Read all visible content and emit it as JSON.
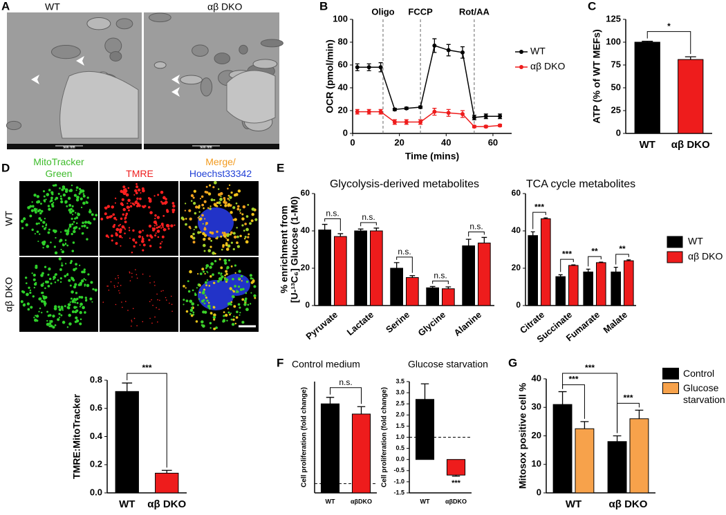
{
  "panel_labels": [
    "A",
    "B",
    "C",
    "D",
    "E",
    "F",
    "G"
  ],
  "micrographs": {
    "labels": [
      "WT",
      "αβ DKO"
    ],
    "scale_label": "500 nm"
  },
  "fluorescence": {
    "columns": {
      "mitotracker": "MitoTracker Green",
      "tmre": "TMRE",
      "merge": "Merge/",
      "hoechst": "Hoechst33342"
    },
    "rows": [
      "WT",
      "αβ DKO"
    ]
  },
  "chart_data": [
    {
      "type": "line",
      "xlabel": "Time (mins)",
      "ylabel": "OCR (pmol/min)",
      "x": [
        2,
        7,
        12,
        18,
        23,
        29,
        35,
        41,
        47,
        52,
        57,
        63
      ],
      "series": [
        {
          "name": "WT",
          "color": "#000000",
          "values": [
            58,
            58,
            58,
            21,
            22,
            23,
            77,
            73,
            71,
            14,
            15,
            15
          ],
          "errors": [
            3,
            3,
            4,
            1,
            1,
            1,
            6,
            5,
            5,
            2,
            2,
            2
          ]
        },
        {
          "name": "αβ DKO",
          "color": "#ee1c1c",
          "values": [
            19,
            19,
            19,
            10,
            10,
            10,
            19,
            18,
            17,
            6,
            6,
            7
          ],
          "errors": [
            2,
            2,
            2,
            2,
            2,
            2,
            3,
            3,
            3,
            1,
            1,
            1
          ]
        }
      ],
      "events": [
        {
          "x": 13,
          "label": "Oligo"
        },
        {
          "x": 29,
          "label": "FCCP"
        },
        {
          "x": 52,
          "label": "Rot/AA"
        }
      ],
      "xlim": [
        0,
        68
      ],
      "xticks": [
        0,
        20,
        40,
        60
      ],
      "ylim": [
        0,
        100
      ],
      "yticks": [
        0,
        20,
        40,
        60,
        80,
        100
      ]
    },
    {
      "type": "bar",
      "ylabel": "ATP (% of WT MEFs)",
      "categories": [
        "WT",
        "αβ DKO"
      ],
      "values": [
        100,
        81
      ],
      "errors": [
        1,
        3
      ],
      "colors": [
        "#000000",
        "#ee1c1c"
      ],
      "ylim": [
        0,
        125
      ],
      "yticks": [
        0,
        25,
        50,
        75,
        100,
        125
      ],
      "significance": "*"
    },
    {
      "type": "bar",
      "ylabel": "TMRE:MitoTracker",
      "categories": [
        "WT",
        "αβ DKO"
      ],
      "values": [
        0.72,
        0.14
      ],
      "errors": [
        0.06,
        0.02
      ],
      "colors": [
        "#000000",
        "#ee1c1c"
      ],
      "ylim": [
        0,
        0.8
      ],
      "yticks": [
        {
          "value": 0,
          "label": "0.0"
        },
        0.2,
        0.4,
        0.6,
        0.8
      ],
      "significance": "***"
    },
    {
      "type": "bar",
      "title": "Glycolysis-derived metabolites",
      "ylabel": [
        "% enrichment from",
        "[U-¹³C₆] Glucose (1-M0)"
      ],
      "categories": [
        "Pyruvate",
        "Lactate",
        "Serine",
        "Glycine",
        "Alanine"
      ],
      "series": [
        {
          "name": "WT",
          "color": "#000000",
          "values": [
            40.5,
            40,
            20,
            9.5,
            32
          ],
          "errors": [
            3,
            1,
            3,
            0.7,
            3.5
          ]
        },
        {
          "name": "αβ DKO",
          "color": "#ee1c1c",
          "values": [
            37,
            40,
            15,
            9,
            33.5
          ],
          "errors": [
            1.5,
            1.5,
            1,
            1,
            3
          ]
        }
      ],
      "ylim": [
        0,
        60
      ],
      "yticks": [
        0,
        20,
        40,
        60
      ],
      "significance": [
        "n.s.",
        "n.s.",
        "n.s.",
        "n.s.",
        "n.s."
      ]
    },
    {
      "type": "bar",
      "title": "TCA cycle metabolites",
      "categories": [
        "Citrate",
        "Succinate",
        "Fumarate",
        "Malate"
      ],
      "series": [
        {
          "name": "WT",
          "color": "#000000",
          "values": [
            37.5,
            15.5,
            18,
            18
          ],
          "errors": [
            2,
            1,
            1.5,
            2.5
          ]
        },
        {
          "name": "αβ DKO",
          "color": "#ee1c1c",
          "values": [
            46.5,
            21.5,
            23,
            24
          ],
          "errors": [
            0.5,
            0.3,
            0.3,
            0.5
          ]
        }
      ],
      "ylim": [
        0,
        60
      ],
      "yticks": [
        0,
        20,
        40,
        60
      ],
      "significance": [
        "***",
        "***",
        "**",
        "**"
      ]
    },
    {
      "type": "bar",
      "title": "Control medium",
      "ylabel": "Cell proliferation (fold change)",
      "categories": [
        "WT",
        "αβDKO"
      ],
      "values": [
        9.6,
        8.5
      ],
      "errors": [
        0.7,
        0.8
      ],
      "colors": [
        "#000000",
        "#ee1c1c"
      ],
      "ylim": [
        0,
        12
      ],
      "ref_line": 1,
      "significance": "n.s."
    },
    {
      "type": "bar",
      "title": "Glucose starvation",
      "ylabel": "Cell proliferation (fold change)",
      "categories": [
        "WT",
        "αβDKO"
      ],
      "values": [
        2.7,
        -0.7
      ],
      "errors": [
        0.7,
        0.05
      ],
      "colors": [
        "#000000",
        "#ee1c1c"
      ],
      "ylim": [
        -1.5,
        3.5
      ],
      "yticks": [
        -1.5,
        {
          "value": -1,
          "label": "-1.0"
        },
        -0.5,
        {
          "value": 0,
          "label": "0.0"
        },
        0.5,
        {
          "value": 1,
          "label": "1.0"
        },
        1.5,
        {
          "value": 2,
          "label": "2.0"
        },
        2.5,
        {
          "value": 3,
          "label": "3.0"
        },
        3.5
      ],
      "ref_line": 1,
      "significance": "***"
    },
    {
      "type": "bar",
      "ylabel": "Mitosox positive cell %",
      "categories": [
        "WT",
        "αβ DKO"
      ],
      "series": [
        {
          "name": "Control",
          "color": "#000000",
          "values": [
            31,
            18
          ],
          "errors": [
            4.5,
            2
          ]
        },
        {
          "name": "Glucose starvation",
          "color": "#f7a24b",
          "values": [
            22.5,
            26
          ],
          "errors": [
            2.5,
            3
          ]
        }
      ],
      "ylim": [
        0,
        40
      ],
      "yticks": [
        0,
        10,
        20,
        30,
        40
      ],
      "significance": [
        "***",
        "***",
        "***"
      ]
    }
  ]
}
